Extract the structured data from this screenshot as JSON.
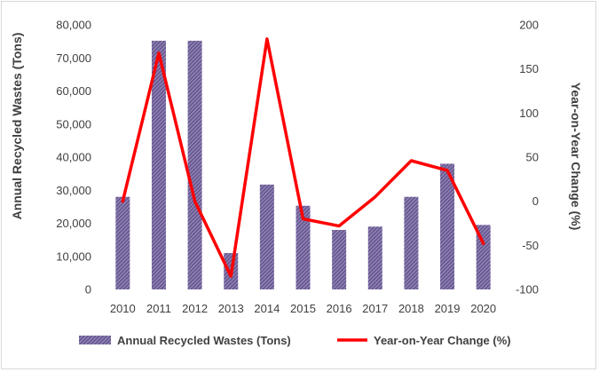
{
  "chart_data": {
    "type": "bar+line",
    "categories": [
      "2010",
      "2011",
      "2012",
      "2013",
      "2014",
      "2015",
      "2016",
      "2017",
      "2018",
      "2019",
      "2020"
    ],
    "series": [
      {
        "name": "Annual Recycled Wastes (Tons)",
        "type": "bar",
        "axis": "left",
        "values": [
          28000,
          75200,
          75200,
          11000,
          31700,
          25300,
          18000,
          19000,
          28000,
          38000,
          19500
        ]
      },
      {
        "name": "Year-on-Year Change (%)",
        "type": "line",
        "axis": "right",
        "values": [
          0,
          168,
          0,
          -85,
          184,
          -20,
          -28,
          5,
          46,
          35,
          -48
        ]
      }
    ],
    "ylabel": "Annual Recycled Wastes (Tons)",
    "y2label": "Year-on-Year Change (%)",
    "ylim": [
      0,
      80000
    ],
    "y2lim": [
      -100,
      200
    ],
    "yticks": [
      "0",
      "10,000",
      "20,000",
      "30,000",
      "40,000",
      "50,000",
      "60,000",
      "70,000",
      "80,000"
    ],
    "y2ticks": [
      "-100",
      "-50",
      "0",
      "50",
      "100",
      "150",
      "200"
    ],
    "legend_position": "bottom",
    "grid": false,
    "colors": {
      "bar": "#6b5b95",
      "bar_stripe": "#c5bdda",
      "line": "#ff0000",
      "text": "#404040"
    }
  }
}
